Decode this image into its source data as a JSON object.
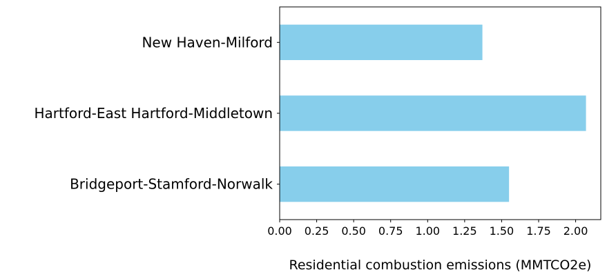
{
  "chart_data": {
    "type": "bar",
    "orientation": "horizontal",
    "categories": [
      "New Haven-Milford",
      "Hartford-East Hartford-Middletown",
      "Bridgeport-Stamford-Norwalk"
    ],
    "values": [
      1.37,
      2.07,
      1.55
    ],
    "xlabel": "Residential combustion emissions (MMTCO2e)",
    "ylabel": "",
    "xlim": [
      0,
      2.17
    ],
    "xticks": [
      "0.00",
      "0.25",
      "0.50",
      "0.75",
      "1.00",
      "1.25",
      "1.50",
      "1.75",
      "2.00"
    ],
    "bar_color": "#87CEEB",
    "grid": false
  }
}
